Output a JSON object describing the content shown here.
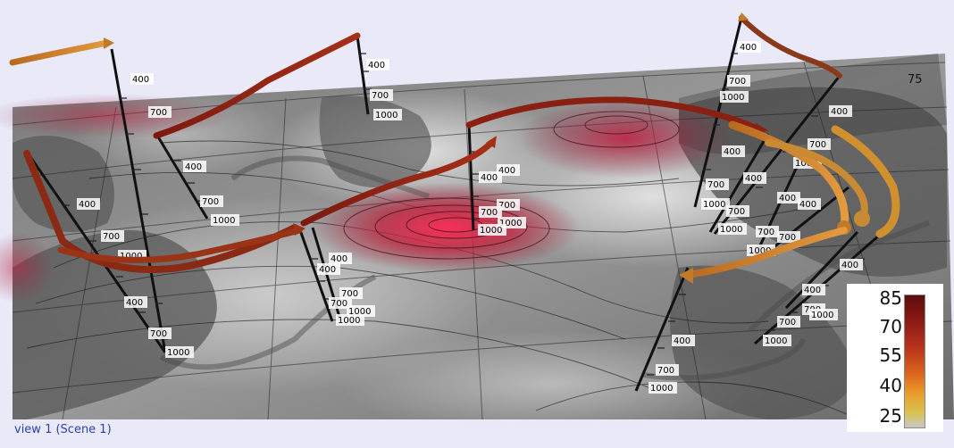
{
  "view_label": "view 1 (Scene 1)",
  "lat_label": "75",
  "colorbar": {
    "ticks": [
      "85",
      "70",
      "55",
      "40",
      "25"
    ]
  },
  "pressure_ticks": {
    "p400": "400",
    "p700": "700",
    "p1000": "1000"
  }
}
